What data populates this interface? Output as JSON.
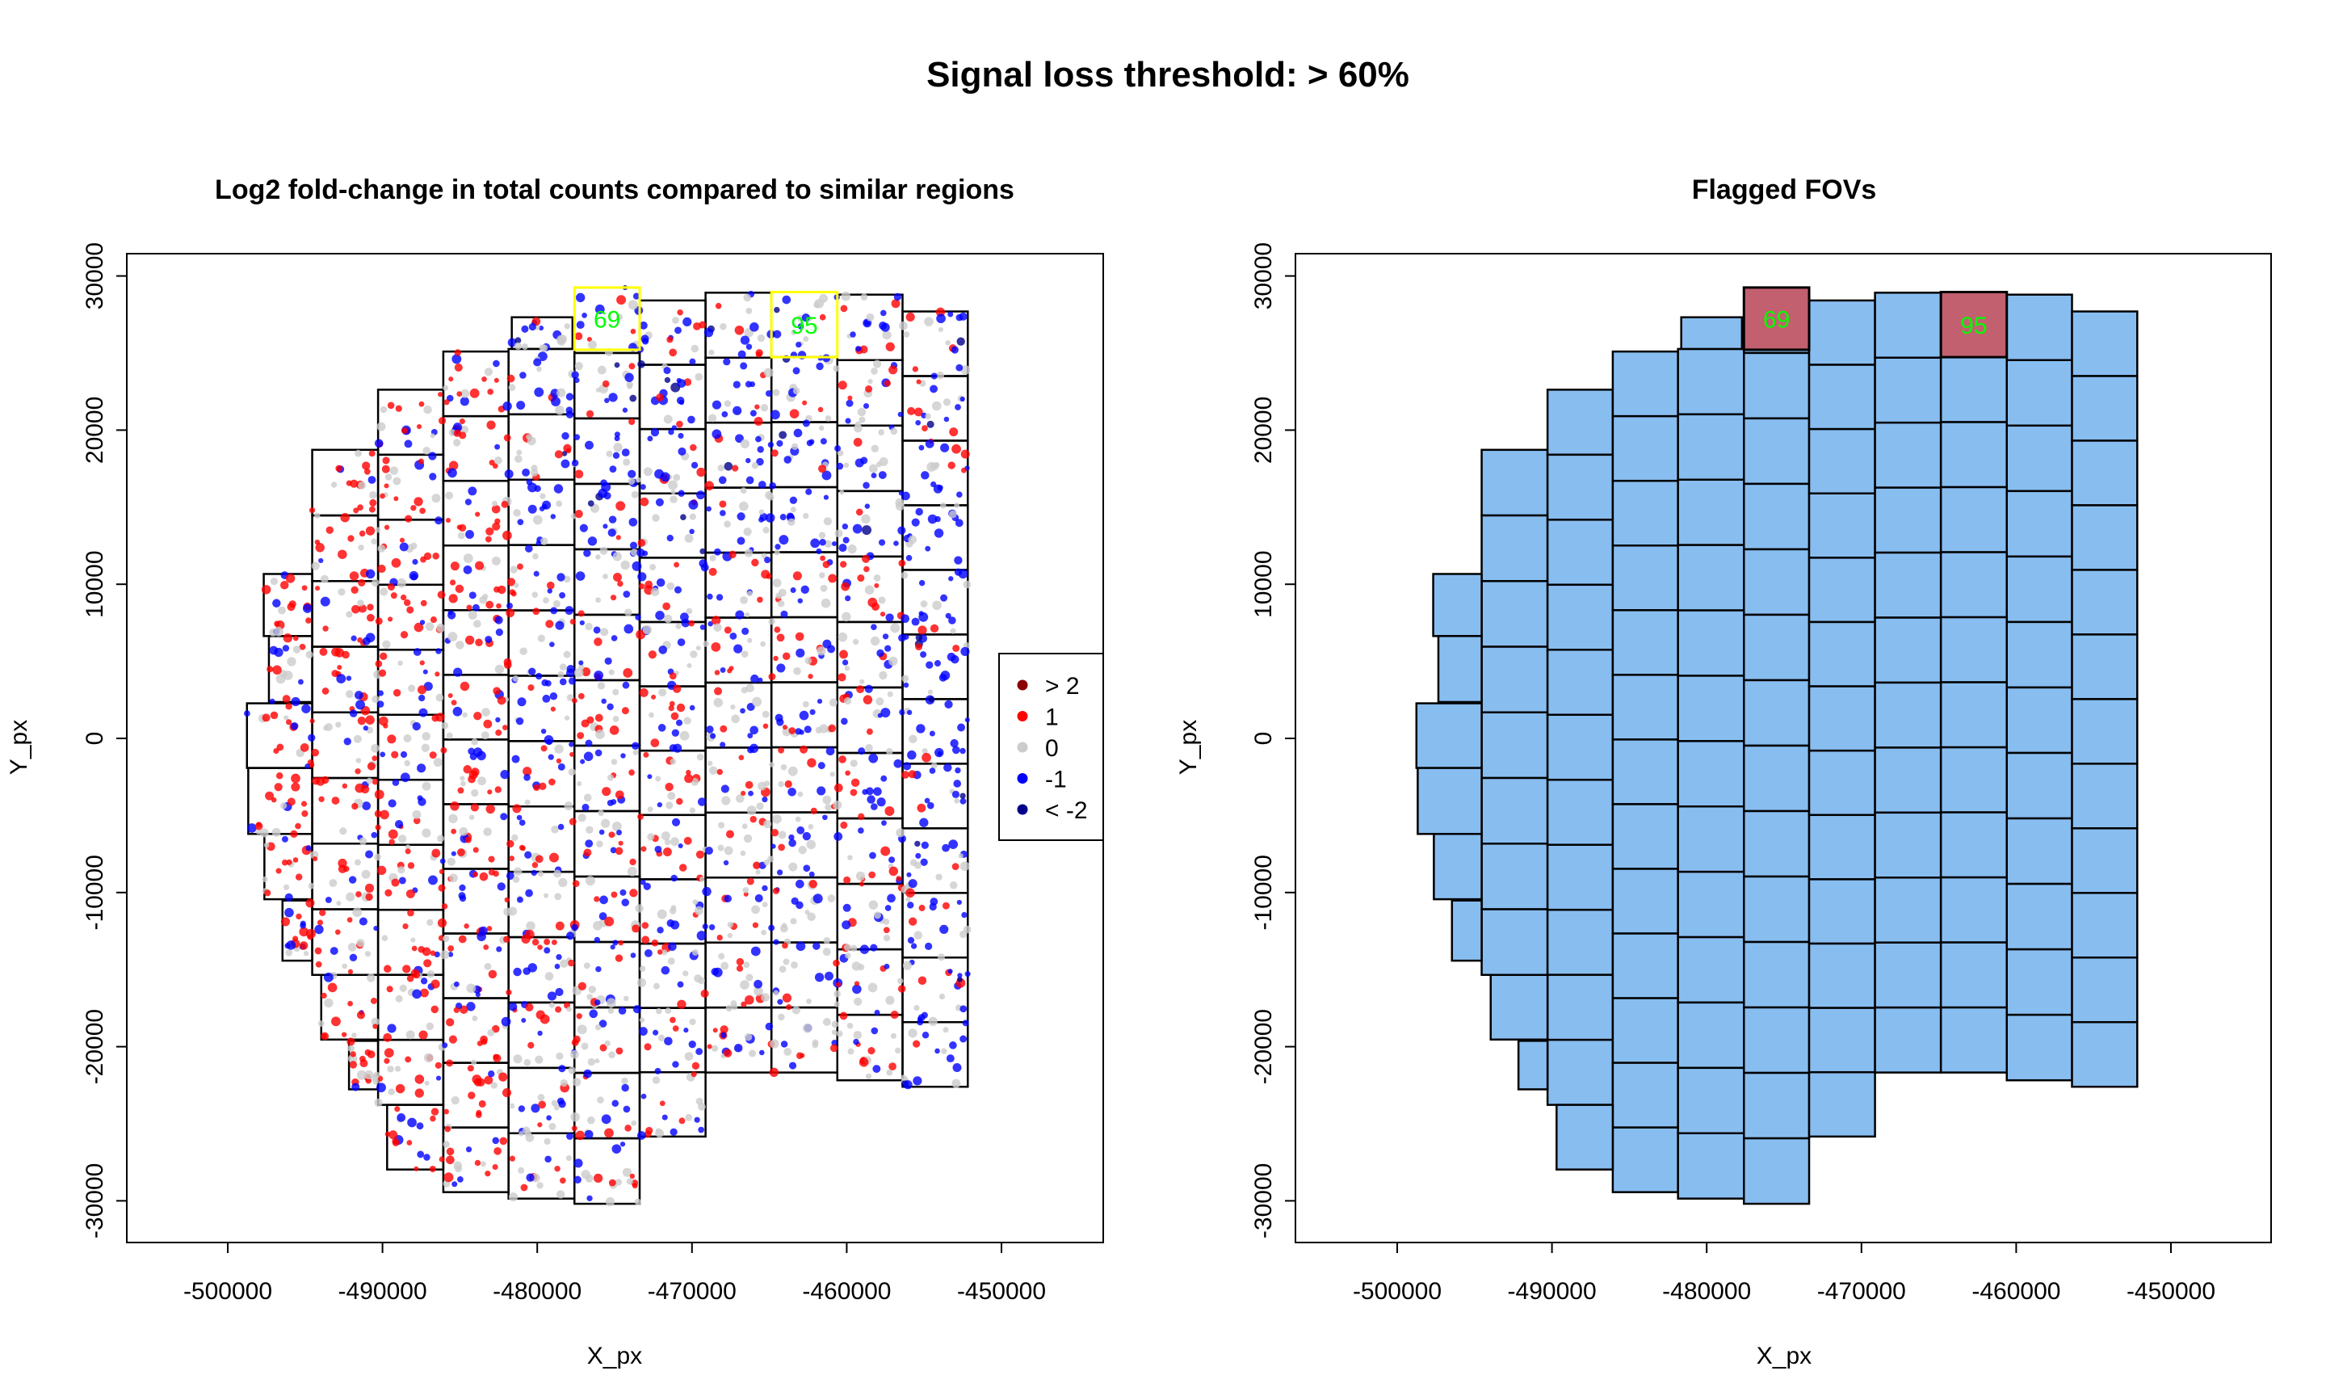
{
  "title": "Signal loss threshold: > 60%",
  "chart_data": [
    {
      "type": "scatter",
      "title": "Log2 fold-change in total counts compared to similar regions",
      "xlabel": "X_px",
      "ylabel": "Y_px",
      "xlim": [
        -506000,
        -443000
      ],
      "ylim": [
        -32500,
        31500
      ],
      "xticks": [
        -500000,
        -490000,
        -480000,
        -470000,
        -460000,
        -450000
      ],
      "xtick_labels": [
        "-500000",
        "-490000",
        "-480000",
        "-470000",
        "-460000",
        "-450000"
      ],
      "yticks": [
        -30000,
        -20000,
        -10000,
        0,
        10000,
        20000,
        30000
      ],
      "ytick_labels": [
        "-30000",
        "-20000",
        "-10000",
        "0",
        "10000",
        "20000",
        "30000"
      ],
      "legend": {
        "position": "right",
        "entries": [
          {
            "label": "> 2",
            "color": "#8b0000"
          },
          {
            "label": "1",
            "color": "#ff0000"
          },
          {
            "label": "0",
            "color": "#cccccc"
          },
          {
            "label": "-1",
            "color": "#0000ff"
          },
          {
            "label": "< -2",
            "color": "#00008b"
          }
        ]
      },
      "highlight_color": "#ffff00",
      "label_color": "#00ff00"
    },
    {
      "type": "table",
      "title": "Flagged FOVs",
      "xlabel": "X_px",
      "ylabel": "Y_px",
      "xlim": [
        -506000,
        -443000
      ],
      "ylim": [
        -32500,
        31500
      ],
      "xticks": [
        -500000,
        -490000,
        -480000,
        -470000,
        -460000,
        -450000
      ],
      "xtick_labels": [
        "-500000",
        "-490000",
        "-480000",
        "-470000",
        "-460000",
        "-450000"
      ],
      "yticks": [
        -30000,
        -20000,
        -10000,
        0,
        10000,
        20000,
        30000
      ],
      "ytick_labels": [
        "-30000",
        "-20000",
        "-10000",
        "0",
        "10000",
        "20000",
        "30000"
      ],
      "fill_ok": "#88bdf0",
      "fill_flagged": "#c2606f",
      "label_color": "#00ff00"
    }
  ],
  "fov_columns": [
    {
      "x": [
        -494543,
        -490286
      ],
      "y": [
        18721,
        -15343
      ],
      "rows": 8
    },
    {
      "x": [
        -490286,
        -486070
      ],
      "y": [
        22622,
        -23775
      ],
      "rows": 11
    },
    {
      "x": [
        -486070,
        -481854
      ],
      "y": [
        25098,
        -29438
      ],
      "rows": 13
    },
    {
      "x": [
        -481854,
        -477596
      ],
      "y": [
        25265,
        -29856
      ],
      "rows": 13
    },
    {
      "x": [
        -477596,
        -473381
      ],
      "y": [
        29251,
        -30192
      ],
      "rows": 14
    },
    {
      "x": [
        -473381,
        -469123
      ],
      "y": [
        28411,
        -25830
      ],
      "rows": 13
    },
    {
      "x": [
        -469123,
        -464866
      ],
      "y": [
        28915,
        -21677
      ],
      "rows": 12
    },
    {
      "x": [
        -464866,
        -460608
      ],
      "y": [
        28957,
        -21677
      ],
      "rows": 12
    },
    {
      "x": [
        -460608,
        -456393
      ],
      "y": [
        28789,
        -22181
      ],
      "rows": 12
    },
    {
      "x": [
        -456393,
        -452177
      ],
      "y": [
        27698,
        -22600
      ],
      "rows": 12
    }
  ],
  "fov_extra": [
    {
      "x": [
        -497674,
        -494543
      ],
      "y": [
        10667,
        6639
      ]
    },
    {
      "x": [
        -497340,
        -494543
      ],
      "y": [
        6639,
        2360
      ]
    },
    {
      "x": [
        -498759,
        -494543
      ],
      "y": [
        2276,
        -1919
      ]
    },
    {
      "x": [
        -498676,
        -494543
      ],
      "y": [
        -1919,
        -6198
      ]
    },
    {
      "x": [
        -497632,
        -494543
      ],
      "y": [
        -6198,
        -10435
      ]
    },
    {
      "x": [
        -496463,
        -494543
      ],
      "y": [
        -10518,
        -14420
      ]
    },
    {
      "x": [
        -493959,
        -490286
      ],
      "y": [
        -15343,
        -19538
      ]
    },
    {
      "x": [
        -492164,
        -490286
      ],
      "y": [
        -19622,
        -22768
      ]
    },
    {
      "x": [
        -489702,
        -486070
      ],
      "y": [
        -23775,
        -27970
      ]
    },
    {
      "x": [
        -481645,
        -477721
      ],
      "y": [
        27321,
        25265
      ]
    }
  ],
  "flagged_fovs": [
    {
      "fov": "69",
      "x": [
        -477596,
        -473381
      ],
      "y": [
        29251,
        25213
      ]
    },
    {
      "fov": "95",
      "x": [
        -464866,
        -460608
      ],
      "y": [
        28957,
        24733
      ]
    }
  ]
}
